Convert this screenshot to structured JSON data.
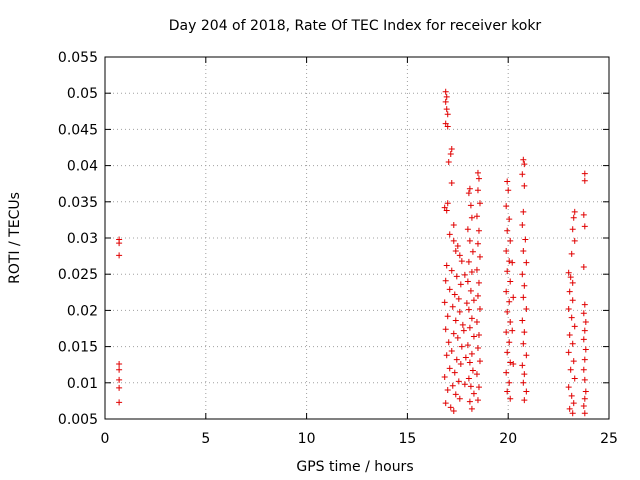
{
  "chart_data": {
    "type": "scatter",
    "title": "Day 204 of 2018, Rate Of TEC Index for receiver kokr",
    "xlabel": "GPS time / hours",
    "ylabel": "ROTI / TECUs",
    "xlim": [
      0,
      25
    ],
    "ylim": [
      0.005,
      0.055
    ],
    "xticks": [
      0,
      5,
      10,
      15,
      20,
      25
    ],
    "xtick_labels": [
      "0",
      "5",
      "10",
      "15",
      "20",
      "25"
    ],
    "yticks": [
      0.005,
      0.01,
      0.015,
      0.02,
      0.025,
      0.03,
      0.035,
      0.04,
      0.045,
      0.05,
      0.055
    ],
    "ytick_labels": [
      "0.005",
      "0.01",
      "0.015",
      "0.02",
      "0.025",
      "0.03",
      "0.035",
      "0.04",
      "0.045",
      "0.05",
      "0.055"
    ],
    "grid": true,
    "marker": "+",
    "color": "#e00000",
    "series": [
      {
        "points": [
          [
            0.7,
            0.0298
          ],
          [
            0.7,
            0.0293
          ],
          [
            0.7,
            0.0276
          ],
          [
            0.7,
            0.0126
          ],
          [
            0.7,
            0.0118
          ],
          [
            0.7,
            0.0104
          ],
          [
            0.7,
            0.0093
          ],
          [
            0.7,
            0.0073
          ],
          [
            16.9,
            0.0502
          ],
          [
            16.95,
            0.0495
          ],
          [
            16.9,
            0.0488
          ],
          [
            16.95,
            0.0478
          ],
          [
            17.0,
            0.0471
          ],
          [
            16.9,
            0.0458
          ],
          [
            17.0,
            0.0454
          ],
          [
            17.2,
            0.0423
          ],
          [
            17.15,
            0.0416
          ],
          [
            17.05,
            0.0405
          ],
          [
            17.2,
            0.0376
          ],
          [
            17.0,
            0.0348
          ],
          [
            16.85,
            0.0342
          ],
          [
            16.95,
            0.0338
          ],
          [
            17.3,
            0.0318
          ],
          [
            17.1,
            0.0305
          ],
          [
            17.3,
            0.0296
          ],
          [
            17.5,
            0.0289
          ],
          [
            17.4,
            0.0282
          ],
          [
            17.6,
            0.0276
          ],
          [
            17.7,
            0.0268
          ],
          [
            16.95,
            0.0262
          ],
          [
            17.2,
            0.0255
          ],
          [
            17.45,
            0.0247
          ],
          [
            16.9,
            0.0241
          ],
          [
            17.65,
            0.0236
          ],
          [
            17.1,
            0.0229
          ],
          [
            17.35,
            0.0222
          ],
          [
            17.55,
            0.0216
          ],
          [
            16.85,
            0.0211
          ],
          [
            17.25,
            0.0205
          ],
          [
            17.6,
            0.0198
          ],
          [
            17.0,
            0.0192
          ],
          [
            17.4,
            0.0186
          ],
          [
            17.75,
            0.018
          ],
          [
            16.9,
            0.0174
          ],
          [
            17.3,
            0.0168
          ],
          [
            17.5,
            0.0162
          ],
          [
            17.05,
            0.0156
          ],
          [
            17.7,
            0.015
          ],
          [
            17.2,
            0.0144
          ],
          [
            16.95,
            0.0138
          ],
          [
            17.45,
            0.0132
          ],
          [
            17.65,
            0.0126
          ],
          [
            17.1,
            0.012
          ],
          [
            17.35,
            0.0114
          ],
          [
            16.85,
            0.0108
          ],
          [
            17.55,
            0.0102
          ],
          [
            17.25,
            0.0096
          ],
          [
            17.0,
            0.009
          ],
          [
            17.4,
            0.0084
          ],
          [
            17.6,
            0.0078
          ],
          [
            16.9,
            0.0072
          ],
          [
            17.15,
            0.0066
          ],
          [
            17.3,
            0.0061
          ],
          [
            17.85,
            0.0098
          ],
          [
            17.9,
            0.0135
          ],
          [
            17.8,
            0.0172
          ],
          [
            17.95,
            0.021
          ],
          [
            17.85,
            0.0249
          ],
          [
            18.1,
            0.0368
          ],
          [
            18.05,
            0.0362
          ],
          [
            18.15,
            0.0345
          ],
          [
            18.2,
            0.0328
          ],
          [
            18.0,
            0.0312
          ],
          [
            18.1,
            0.0296
          ],
          [
            18.25,
            0.0281
          ],
          [
            18.05,
            0.0267
          ],
          [
            18.2,
            0.0253
          ],
          [
            18.0,
            0.024
          ],
          [
            18.15,
            0.0227
          ],
          [
            18.3,
            0.0214
          ],
          [
            18.05,
            0.0201
          ],
          [
            18.2,
            0.0189
          ],
          [
            18.1,
            0.0176
          ],
          [
            18.3,
            0.0164
          ],
          [
            18.0,
            0.0152
          ],
          [
            18.2,
            0.014
          ],
          [
            18.1,
            0.0128
          ],
          [
            18.25,
            0.0117
          ],
          [
            18.05,
            0.0106
          ],
          [
            18.15,
            0.0095
          ],
          [
            18.3,
            0.0085
          ],
          [
            18.1,
            0.0074
          ],
          [
            18.2,
            0.0064
          ],
          [
            18.5,
            0.039
          ],
          [
            18.55,
            0.0382
          ],
          [
            18.5,
            0.0366
          ],
          [
            18.6,
            0.0348
          ],
          [
            18.45,
            0.033
          ],
          [
            18.55,
            0.031
          ],
          [
            18.5,
            0.0292
          ],
          [
            18.6,
            0.0274
          ],
          [
            18.45,
            0.0256
          ],
          [
            18.55,
            0.0238
          ],
          [
            18.5,
            0.022
          ],
          [
            18.6,
            0.0202
          ],
          [
            18.45,
            0.0184
          ],
          [
            18.55,
            0.0166
          ],
          [
            18.5,
            0.0148
          ],
          [
            18.6,
            0.013
          ],
          [
            18.45,
            0.0112
          ],
          [
            18.55,
            0.0094
          ],
          [
            18.5,
            0.0076
          ],
          [
            19.95,
            0.0378
          ],
          [
            20.0,
            0.0366
          ],
          [
            19.9,
            0.0344
          ],
          [
            20.05,
            0.0326
          ],
          [
            19.95,
            0.031
          ],
          [
            20.1,
            0.0296
          ],
          [
            19.9,
            0.0282
          ],
          [
            20.05,
            0.0268
          ],
          [
            19.95,
            0.0254
          ],
          [
            20.1,
            0.024
          ],
          [
            19.9,
            0.0226
          ],
          [
            20.05,
            0.0212
          ],
          [
            19.95,
            0.0198
          ],
          [
            20.1,
            0.0184
          ],
          [
            19.9,
            0.017
          ],
          [
            20.05,
            0.0156
          ],
          [
            19.95,
            0.0142
          ],
          [
            20.1,
            0.0128
          ],
          [
            19.9,
            0.0114
          ],
          [
            20.05,
            0.01
          ],
          [
            19.95,
            0.0088
          ],
          [
            20.1,
            0.0078
          ],
          [
            20.2,
            0.0266
          ],
          [
            20.25,
            0.0218
          ],
          [
            20.2,
            0.0172
          ],
          [
            20.25,
            0.0126
          ],
          [
            20.75,
            0.0408
          ],
          [
            20.8,
            0.0402
          ],
          [
            20.7,
            0.0388
          ],
          [
            20.8,
            0.0372
          ],
          [
            20.75,
            0.0336
          ],
          [
            20.7,
            0.0318
          ],
          [
            20.85,
            0.0298
          ],
          [
            20.75,
            0.0282
          ],
          [
            20.9,
            0.0266
          ],
          [
            20.7,
            0.025
          ],
          [
            20.8,
            0.0234
          ],
          [
            20.75,
            0.0218
          ],
          [
            20.9,
            0.0202
          ],
          [
            20.7,
            0.0186
          ],
          [
            20.8,
            0.017
          ],
          [
            20.75,
            0.0154
          ],
          [
            20.9,
            0.0138
          ],
          [
            20.7,
            0.0124
          ],
          [
            20.8,
            0.0112
          ],
          [
            20.75,
            0.01
          ],
          [
            20.9,
            0.0088
          ],
          [
            20.8,
            0.0076
          ],
          [
            23.0,
            0.0252
          ],
          [
            23.1,
            0.0246
          ],
          [
            23.2,
            0.0238
          ],
          [
            23.3,
            0.0336
          ],
          [
            23.25,
            0.0328
          ],
          [
            23.2,
            0.0312
          ],
          [
            23.3,
            0.0296
          ],
          [
            23.15,
            0.0278
          ],
          [
            23.05,
            0.0226
          ],
          [
            23.2,
            0.0214
          ],
          [
            23.0,
            0.0202
          ],
          [
            23.15,
            0.019
          ],
          [
            23.3,
            0.0178
          ],
          [
            23.05,
            0.0166
          ],
          [
            23.2,
            0.0154
          ],
          [
            23.0,
            0.0142
          ],
          [
            23.25,
            0.013
          ],
          [
            23.1,
            0.0118
          ],
          [
            23.3,
            0.0106
          ],
          [
            23.0,
            0.0094
          ],
          [
            23.15,
            0.0082
          ],
          [
            23.25,
            0.0072
          ],
          [
            23.05,
            0.0064
          ],
          [
            23.2,
            0.0058
          ],
          [
            23.8,
            0.0389
          ],
          [
            23.8,
            0.0379
          ],
          [
            23.75,
            0.0332
          ],
          [
            23.8,
            0.0316
          ],
          [
            23.75,
            0.026
          ],
          [
            23.8,
            0.0208
          ],
          [
            23.75,
            0.0196
          ],
          [
            23.85,
            0.0184
          ],
          [
            23.8,
            0.0172
          ],
          [
            23.75,
            0.016
          ],
          [
            23.85,
            0.0146
          ],
          [
            23.8,
            0.0132
          ],
          [
            23.75,
            0.0118
          ],
          [
            23.8,
            0.0104
          ],
          [
            23.85,
            0.0088
          ],
          [
            23.8,
            0.0078
          ],
          [
            23.75,
            0.0068
          ],
          [
            23.8,
            0.0058
          ]
        ]
      }
    ]
  }
}
